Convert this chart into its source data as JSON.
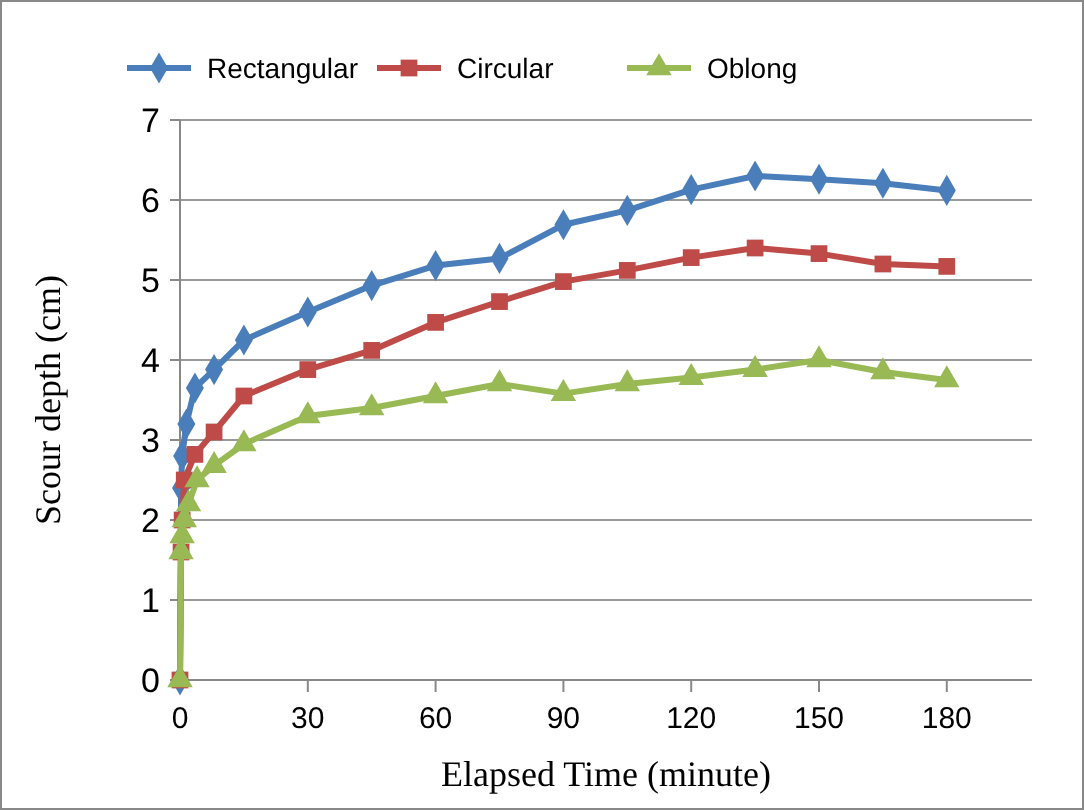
{
  "chart_data": {
    "type": "line",
    "xlabel": "Elapsed Time (minute)",
    "ylabel": "Scour depth (cm)",
    "xlim": [
      0,
      200
    ],
    "xticks": [
      0,
      30,
      60,
      90,
      120,
      150,
      180
    ],
    "ylim": [
      0,
      7
    ],
    "yticks": [
      0,
      1,
      2,
      3,
      4,
      5,
      6,
      7
    ],
    "grid": "y",
    "legend": "top",
    "series": [
      {
        "name": "Rectangular",
        "color": "#4a7ebb",
        "marker": "diamond",
        "x": [
          0,
          0.25,
          0.5,
          1.5,
          3.5,
          8,
          15,
          30,
          45,
          60,
          75,
          90,
          105,
          120,
          135,
          150,
          165,
          180
        ],
        "values": [
          0,
          2.4,
          2.8,
          3.2,
          3.65,
          3.88,
          4.25,
          4.6,
          4.93,
          5.18,
          5.27,
          5.69,
          5.87,
          6.13,
          6.3,
          6.26,
          6.21,
          6.12
        ]
      },
      {
        "name": "Circular",
        "color": "#be4b48",
        "marker": "square",
        "x": [
          0,
          0.25,
          0.5,
          1,
          3.5,
          8,
          15,
          30,
          45,
          60,
          75,
          90,
          105,
          120,
          135,
          150,
          165,
          180
        ],
        "values": [
          0,
          1.6,
          2.0,
          2.5,
          2.82,
          3.1,
          3.55,
          3.88,
          4.12,
          4.47,
          4.73,
          4.98,
          5.12,
          5.28,
          5.4,
          5.33,
          5.2,
          5.17
        ]
      },
      {
        "name": "Oblong",
        "color": "#98b954",
        "marker": "triangle",
        "x": [
          0,
          0.25,
          0.5,
          1,
          2,
          4,
          8,
          15,
          30,
          45,
          60,
          75,
          90,
          105,
          120,
          135,
          150,
          165,
          180
        ],
        "values": [
          0,
          1.6,
          1.8,
          2.0,
          2.2,
          2.5,
          2.68,
          2.95,
          3.3,
          3.4,
          3.55,
          3.7,
          3.58,
          3.7,
          3.78,
          3.88,
          4.0,
          3.85,
          3.75
        ]
      }
    ]
  }
}
